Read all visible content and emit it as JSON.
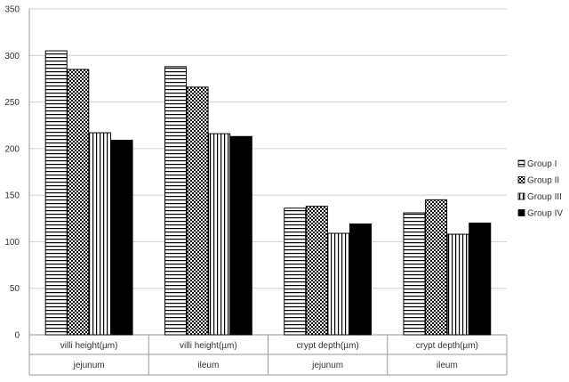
{
  "chart_data": {
    "type": "bar",
    "categories": [
      {
        "label": "villi height(µm)",
        "group": "jejunum"
      },
      {
        "label": "villi height(µm)",
        "group": "ileum"
      },
      {
        "label": "crypt depth(µm)",
        "group": "jejunum"
      },
      {
        "label": "crypt depth(µm)",
        "group": "ileum"
      }
    ],
    "series": [
      {
        "name": "Group I",
        "pattern": "horizontal-lines",
        "values": [
          305,
          288,
          136,
          131
        ]
      },
      {
        "name": "Group II",
        "pattern": "checker",
        "values": [
          285,
          266,
          138,
          145
        ]
      },
      {
        "name": "Group III",
        "pattern": "vertical-lines",
        "values": [
          217,
          216,
          109,
          108
        ]
      },
      {
        "name": "Group IV",
        "pattern": "solid",
        "values": [
          209,
          213,
          119,
          120
        ]
      }
    ],
    "ylim": [
      0,
      350
    ],
    "yticks": [
      0,
      50,
      100,
      150,
      200,
      250,
      300,
      350
    ],
    "grid": true,
    "legend_position": "right",
    "bar_color": "#000000"
  }
}
